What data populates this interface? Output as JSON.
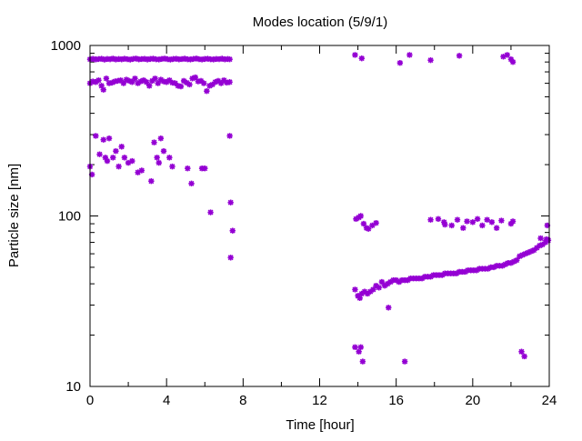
{
  "chart_data": {
    "type": "scatter",
    "title": "Modes location (5/9/1)",
    "xlabel": "Time [hour]",
    "ylabel": "Particle size [nm]",
    "xlim": [
      0,
      24
    ],
    "ylim": [
      10,
      1000
    ],
    "y_scale": "log",
    "x_ticks": [
      0,
      4,
      8,
      12,
      16,
      20,
      24
    ],
    "x_tick_labels": [
      "0",
      "4",
      "8",
      "12",
      "16",
      "20",
      "24"
    ],
    "y_ticks": [
      10,
      100,
      1000
    ],
    "y_tick_labels": [
      "10",
      "100",
      "1000"
    ],
    "grid": false,
    "marker": "asterisk",
    "color": "#9400d3",
    "series": [
      {
        "points": [
          [
            0.0,
            830
          ],
          [
            0.15,
            835
          ],
          [
            0.3,
            828
          ],
          [
            0.45,
            832
          ],
          [
            0.6,
            836
          ],
          [
            0.75,
            826
          ],
          [
            0.9,
            834
          ],
          [
            1.05,
            830
          ],
          [
            1.2,
            838
          ],
          [
            1.35,
            827
          ],
          [
            1.5,
            833
          ],
          [
            1.65,
            829
          ],
          [
            1.8,
            836
          ],
          [
            1.95,
            831
          ],
          [
            2.1,
            826
          ],
          [
            2.25,
            834
          ],
          [
            2.4,
            839
          ],
          [
            2.55,
            829
          ],
          [
            2.7,
            832
          ],
          [
            2.85,
            835
          ],
          [
            3.0,
            828
          ],
          [
            3.15,
            833
          ],
          [
            3.3,
            837
          ],
          [
            3.45,
            830
          ],
          [
            3.6,
            827
          ],
          [
            3.75,
            834
          ],
          [
            3.9,
            838
          ],
          [
            4.05,
            831
          ],
          [
            4.2,
            826
          ],
          [
            4.35,
            833
          ],
          [
            4.5,
            836
          ],
          [
            4.65,
            829
          ],
          [
            4.8,
            832
          ],
          [
            4.95,
            837
          ],
          [
            5.1,
            830
          ],
          [
            5.25,
            828
          ],
          [
            5.4,
            834
          ],
          [
            5.55,
            839
          ],
          [
            5.7,
            831
          ],
          [
            5.85,
            827
          ],
          [
            6.0,
            833
          ],
          [
            6.15,
            836
          ],
          [
            6.3,
            830
          ],
          [
            6.45,
            828
          ],
          [
            6.6,
            834
          ],
          [
            6.75,
            831
          ],
          [
            6.9,
            837
          ],
          [
            7.05,
            829
          ],
          [
            7.2,
            833
          ],
          [
            7.3,
            830
          ],
          [
            0.0,
            600
          ],
          [
            0.15,
            615
          ],
          [
            0.3,
            610
          ],
          [
            0.45,
            625
          ],
          [
            0.6,
            580
          ],
          [
            0.7,
            550
          ],
          [
            0.85,
            640
          ],
          [
            1.0,
            600
          ],
          [
            1.15,
            605
          ],
          [
            1.3,
            615
          ],
          [
            1.45,
            620
          ],
          [
            1.6,
            625
          ],
          [
            1.75,
            600
          ],
          [
            1.9,
            630
          ],
          [
            2.05,
            620
          ],
          [
            2.2,
            610
          ],
          [
            2.35,
            640
          ],
          [
            2.5,
            600
          ],
          [
            2.65,
            615
          ],
          [
            2.8,
            625
          ],
          [
            2.95,
            610
          ],
          [
            3.1,
            580
          ],
          [
            3.25,
            620
          ],
          [
            3.4,
            640
          ],
          [
            3.55,
            600
          ],
          [
            3.7,
            630
          ],
          [
            3.85,
            615
          ],
          [
            4.0,
            610
          ],
          [
            4.15,
            625
          ],
          [
            4.3,
            605
          ],
          [
            4.45,
            600
          ],
          [
            4.6,
            580
          ],
          [
            4.75,
            575
          ],
          [
            4.9,
            620
          ],
          [
            5.05,
            605
          ],
          [
            5.2,
            590
          ],
          [
            5.35,
            640
          ],
          [
            5.5,
            650
          ],
          [
            5.65,
            615
          ],
          [
            5.8,
            620
          ],
          [
            5.95,
            600
          ],
          [
            6.1,
            540
          ],
          [
            6.25,
            580
          ],
          [
            6.4,
            590
          ],
          [
            6.55,
            610
          ],
          [
            6.7,
            620
          ],
          [
            6.85,
            600
          ],
          [
            7.0,
            625
          ],
          [
            7.15,
            605
          ],
          [
            7.3,
            610
          ],
          [
            0.0,
            195
          ],
          [
            0.1,
            175
          ],
          [
            0.3,
            295
          ],
          [
            0.5,
            230
          ],
          [
            0.7,
            280
          ],
          [
            0.8,
            220
          ],
          [
            0.9,
            210
          ],
          [
            1.0,
            285
          ],
          [
            1.2,
            220
          ],
          [
            1.35,
            240
          ],
          [
            1.5,
            195
          ],
          [
            1.65,
            255
          ],
          [
            1.8,
            220
          ],
          [
            2.0,
            205
          ],
          [
            2.2,
            210
          ],
          [
            2.5,
            180
          ],
          [
            2.7,
            185
          ],
          [
            3.2,
            160
          ],
          [
            3.35,
            270
          ],
          [
            3.5,
            220
          ],
          [
            3.6,
            205
          ],
          [
            3.7,
            285
          ],
          [
            3.85,
            240
          ],
          [
            4.15,
            220
          ],
          [
            4.3,
            195
          ],
          [
            5.1,
            190
          ],
          [
            5.3,
            155
          ],
          [
            5.85,
            190
          ],
          [
            6.0,
            190
          ],
          [
            6.3,
            105
          ],
          [
            7.3,
            295
          ],
          [
            7.35,
            120
          ],
          [
            7.45,
            82
          ],
          [
            7.35,
            57
          ],
          [
            13.85,
            880
          ],
          [
            14.2,
            840
          ],
          [
            16.2,
            790
          ],
          [
            16.7,
            880
          ],
          [
            17.8,
            820
          ],
          [
            19.3,
            870
          ],
          [
            21.6,
            860
          ],
          [
            21.8,
            880
          ],
          [
            22.0,
            830
          ],
          [
            22.1,
            800
          ],
          [
            13.9,
            96
          ],
          [
            14.05,
            98
          ],
          [
            14.15,
            100
          ],
          [
            14.3,
            90
          ],
          [
            14.45,
            85
          ],
          [
            14.55,
            84
          ],
          [
            14.75,
            88
          ],
          [
            14.95,
            91
          ],
          [
            17.8,
            95
          ],
          [
            18.2,
            96
          ],
          [
            18.5,
            92
          ],
          [
            18.55,
            89
          ],
          [
            18.9,
            88
          ],
          [
            19.2,
            95
          ],
          [
            19.5,
            85
          ],
          [
            19.7,
            93
          ],
          [
            20.0,
            92
          ],
          [
            20.25,
            96
          ],
          [
            20.5,
            88
          ],
          [
            20.75,
            95
          ],
          [
            21.0,
            92
          ],
          [
            21.25,
            85
          ],
          [
            21.5,
            94
          ],
          [
            22.0,
            90
          ],
          [
            22.1,
            93
          ],
          [
            13.85,
            17
          ],
          [
            14.05,
            16
          ],
          [
            14.15,
            17
          ],
          [
            14.25,
            14
          ],
          [
            15.6,
            29
          ],
          [
            16.45,
            14
          ],
          [
            22.55,
            16
          ],
          [
            22.7,
            15
          ],
          [
            13.85,
            37
          ],
          [
            14.0,
            34
          ],
          [
            14.1,
            33
          ],
          [
            14.2,
            35
          ],
          [
            14.35,
            36
          ],
          [
            14.5,
            35
          ],
          [
            14.65,
            36
          ],
          [
            14.8,
            37
          ],
          [
            14.95,
            39
          ],
          [
            15.1,
            38
          ],
          [
            15.25,
            41
          ],
          [
            15.4,
            39
          ],
          [
            15.55,
            40
          ],
          [
            15.7,
            41
          ],
          [
            15.85,
            42
          ],
          [
            16.0,
            42
          ],
          [
            16.15,
            41
          ],
          [
            16.3,
            42
          ],
          [
            16.45,
            42
          ],
          [
            16.6,
            42
          ],
          [
            16.75,
            43
          ],
          [
            16.9,
            43
          ],
          [
            17.05,
            43
          ],
          [
            17.2,
            43
          ],
          [
            17.35,
            43
          ],
          [
            17.5,
            44
          ],
          [
            17.65,
            44
          ],
          [
            17.8,
            44
          ],
          [
            17.95,
            45
          ],
          [
            18.1,
            45
          ],
          [
            18.25,
            45
          ],
          [
            18.4,
            45
          ],
          [
            18.55,
            46
          ],
          [
            18.7,
            46
          ],
          [
            18.85,
            46
          ],
          [
            19.0,
            46
          ],
          [
            19.15,
            46
          ],
          [
            19.3,
            47
          ],
          [
            19.45,
            47
          ],
          [
            19.6,
            47
          ],
          [
            19.75,
            48
          ],
          [
            19.9,
            48
          ],
          [
            20.05,
            48
          ],
          [
            20.2,
            48
          ],
          [
            20.35,
            49
          ],
          [
            20.5,
            49
          ],
          [
            20.65,
            49
          ],
          [
            20.8,
            49
          ],
          [
            20.95,
            50
          ],
          [
            21.1,
            50
          ],
          [
            21.25,
            51
          ],
          [
            21.4,
            51
          ],
          [
            21.55,
            51
          ],
          [
            21.7,
            52
          ],
          [
            21.85,
            53
          ],
          [
            22.0,
            53
          ],
          [
            22.15,
            54
          ],
          [
            22.3,
            55
          ],
          [
            22.45,
            58
          ],
          [
            22.6,
            59
          ],
          [
            22.75,
            60
          ],
          [
            22.9,
            61
          ],
          [
            23.05,
            62
          ],
          [
            23.2,
            63
          ],
          [
            23.35,
            65
          ],
          [
            23.5,
            67
          ],
          [
            23.65,
            68
          ],
          [
            23.8,
            70
          ],
          [
            23.9,
            72
          ],
          [
            23.95,
            72
          ],
          [
            23.55,
            74
          ],
          [
            23.85,
            73
          ],
          [
            23.9,
            88
          ]
        ]
      }
    ]
  }
}
